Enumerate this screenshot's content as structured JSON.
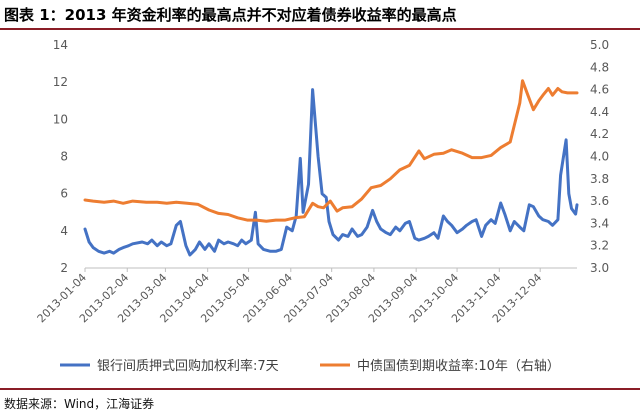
{
  "title": "图表 1：2013 年资金利率的最高点并不对应着债券收益率的最高点",
  "source": "数据来源：Wind，江海证券",
  "colors": {
    "series1": "#4472c4",
    "series2": "#ed7d31",
    "axis": "#bfbfbf",
    "text": "#595959",
    "rule": "#8a1d26"
  },
  "chart_data": {
    "type": "line",
    "x_ticks": [
      "2013-01-04",
      "2013-02-04",
      "2013-03-04",
      "2013-04-04",
      "2013-05-04",
      "2013-06-04",
      "2013-07-04",
      "2013-08-04",
      "2013-09-04",
      "2013-10-04",
      "2013-11-04",
      "2013-12-04"
    ],
    "y_left": {
      "min": 2,
      "max": 14,
      "ticks": [
        "2",
        "4",
        "6",
        "8",
        "10",
        "12",
        "14"
      ]
    },
    "y_right": {
      "min": 3.0,
      "max": 5.0,
      "ticks": [
        "3.0",
        "3.2",
        "3.4",
        "3.6",
        "3.8",
        "4.0",
        "4.2",
        "4.4",
        "4.6",
        "4.8",
        "5.0"
      ]
    },
    "grid": false,
    "legend_position": "bottom",
    "series": [
      {
        "name": "银行间质押式回购加权利率:7天",
        "axis": "left",
        "points": [
          [
            "2013-01-04",
            4.1
          ],
          [
            "2013-01-07",
            3.4
          ],
          [
            "2013-01-10",
            3.1
          ],
          [
            "2013-01-14",
            2.9
          ],
          [
            "2013-01-18",
            2.8
          ],
          [
            "2013-01-22",
            2.9
          ],
          [
            "2013-01-25",
            2.8
          ],
          [
            "2013-01-29",
            3.0
          ],
          [
            "2013-02-01",
            3.1
          ],
          [
            "2013-02-05",
            3.2
          ],
          [
            "2013-02-08",
            3.3
          ],
          [
            "2013-02-15",
            3.4
          ],
          [
            "2013-02-19",
            3.3
          ],
          [
            "2013-02-22",
            3.5
          ],
          [
            "2013-02-26",
            3.2
          ],
          [
            "2013-03-01",
            3.4
          ],
          [
            "2013-03-05",
            3.2
          ],
          [
            "2013-03-08",
            3.3
          ],
          [
            "2013-03-12",
            4.3
          ],
          [
            "2013-03-15",
            4.5
          ],
          [
            "2013-03-19",
            3.2
          ],
          [
            "2013-03-22",
            2.7
          ],
          [
            "2013-03-26",
            3.0
          ],
          [
            "2013-03-29",
            3.4
          ],
          [
            "2013-04-02",
            3.0
          ],
          [
            "2013-04-05",
            3.3
          ],
          [
            "2013-04-09",
            2.9
          ],
          [
            "2013-04-12",
            3.5
          ],
          [
            "2013-04-16",
            3.3
          ],
          [
            "2013-04-19",
            3.4
          ],
          [
            "2013-04-23",
            3.3
          ],
          [
            "2013-04-26",
            3.2
          ],
          [
            "2013-04-29",
            3.5
          ],
          [
            "2013-05-02",
            3.3
          ],
          [
            "2013-05-06",
            3.5
          ],
          [
            "2013-05-09",
            5.0
          ],
          [
            "2013-05-11",
            3.3
          ],
          [
            "2013-05-15",
            3.0
          ],
          [
            "2013-05-20",
            2.9
          ],
          [
            "2013-05-24",
            2.9
          ],
          [
            "2013-05-28",
            3.0
          ],
          [
            "2013-06-01",
            4.2
          ],
          [
            "2013-06-05",
            4.0
          ],
          [
            "2013-06-08",
            4.8
          ],
          [
            "2013-06-11",
            7.9
          ],
          [
            "2013-06-13",
            5.0
          ],
          [
            "2013-06-17",
            6.5
          ],
          [
            "2013-06-20",
            11.6
          ],
          [
            "2013-06-24",
            8.0
          ],
          [
            "2013-06-27",
            6.0
          ],
          [
            "2013-06-30",
            5.8
          ],
          [
            "2013-07-02",
            4.5
          ],
          [
            "2013-07-05",
            3.8
          ],
          [
            "2013-07-09",
            3.5
          ],
          [
            "2013-07-12",
            3.8
          ],
          [
            "2013-07-16",
            3.7
          ],
          [
            "2013-07-19",
            4.1
          ],
          [
            "2013-07-23",
            3.7
          ],
          [
            "2013-07-26",
            3.8
          ],
          [
            "2013-07-30",
            4.2
          ],
          [
            "2013-08-03",
            5.1
          ],
          [
            "2013-08-06",
            4.5
          ],
          [
            "2013-08-09",
            4.1
          ],
          [
            "2013-08-13",
            3.9
          ],
          [
            "2013-08-16",
            3.8
          ],
          [
            "2013-08-20",
            4.2
          ],
          [
            "2013-08-23",
            4.0
          ],
          [
            "2013-08-27",
            4.4
          ],
          [
            "2013-08-30",
            4.5
          ],
          [
            "2013-09-03",
            3.6
          ],
          [
            "2013-09-06",
            3.5
          ],
          [
            "2013-09-10",
            3.6
          ],
          [
            "2013-09-13",
            3.7
          ],
          [
            "2013-09-17",
            3.9
          ],
          [
            "2013-09-20",
            3.6
          ],
          [
            "2013-09-24",
            4.8
          ],
          [
            "2013-09-27",
            4.5
          ],
          [
            "2013-09-30",
            4.3
          ],
          [
            "2013-10-04",
            3.9
          ],
          [
            "2013-10-08",
            4.1
          ],
          [
            "2013-10-11",
            4.3
          ],
          [
            "2013-10-15",
            4.5
          ],
          [
            "2013-10-18",
            4.6
          ],
          [
            "2013-10-22",
            3.7
          ],
          [
            "2013-10-25",
            4.3
          ],
          [
            "2013-10-29",
            4.6
          ],
          [
            "2013-11-01",
            4.4
          ],
          [
            "2013-11-05",
            5.5
          ],
          [
            "2013-11-08",
            4.9
          ],
          [
            "2013-11-12",
            4.0
          ],
          [
            "2013-11-15",
            4.5
          ],
          [
            "2013-11-19",
            4.2
          ],
          [
            "2013-11-22",
            4.0
          ],
          [
            "2013-11-26",
            5.4
          ],
          [
            "2013-11-29",
            5.3
          ],
          [
            "2013-12-03",
            4.8
          ],
          [
            "2013-12-06",
            4.6
          ],
          [
            "2013-12-10",
            4.5
          ],
          [
            "2013-12-13",
            4.3
          ],
          [
            "2013-12-17",
            4.6
          ],
          [
            "2013-12-19",
            7.0
          ],
          [
            "2013-12-23",
            8.9
          ],
          [
            "2013-12-25",
            6.0
          ],
          [
            "2013-12-27",
            5.2
          ],
          [
            "2013-12-30",
            4.9
          ],
          [
            "2013-12-31",
            5.4
          ]
        ]
      },
      {
        "name": "中债国债到期收益率:10年（右轴）",
        "axis": "right",
        "points": [
          [
            "2013-01-04",
            3.61
          ],
          [
            "2013-01-10",
            3.6
          ],
          [
            "2013-01-18",
            3.59
          ],
          [
            "2013-01-25",
            3.6
          ],
          [
            "2013-02-01",
            3.58
          ],
          [
            "2013-02-08",
            3.6
          ],
          [
            "2013-02-18",
            3.59
          ],
          [
            "2013-02-26",
            3.59
          ],
          [
            "2013-03-05",
            3.58
          ],
          [
            "2013-03-12",
            3.59
          ],
          [
            "2013-03-20",
            3.58
          ],
          [
            "2013-03-28",
            3.57
          ],
          [
            "2013-04-05",
            3.52
          ],
          [
            "2013-04-12",
            3.49
          ],
          [
            "2013-04-19",
            3.48
          ],
          [
            "2013-04-26",
            3.45
          ],
          [
            "2013-05-03",
            3.43
          ],
          [
            "2013-05-10",
            3.43
          ],
          [
            "2013-05-17",
            3.42
          ],
          [
            "2013-05-24",
            3.43
          ],
          [
            "2013-05-31",
            3.43
          ],
          [
            "2013-06-07",
            3.45
          ],
          [
            "2013-06-14",
            3.46
          ],
          [
            "2013-06-20",
            3.58
          ],
          [
            "2013-06-24",
            3.55
          ],
          [
            "2013-06-28",
            3.54
          ],
          [
            "2013-07-03",
            3.6
          ],
          [
            "2013-07-08",
            3.51
          ],
          [
            "2013-07-12",
            3.54
          ],
          [
            "2013-07-19",
            3.55
          ],
          [
            "2013-07-26",
            3.62
          ],
          [
            "2013-08-02",
            3.72
          ],
          [
            "2013-08-09",
            3.74
          ],
          [
            "2013-08-16",
            3.8
          ],
          [
            "2013-08-23",
            3.88
          ],
          [
            "2013-08-30",
            3.92
          ],
          [
            "2013-09-06",
            4.05
          ],
          [
            "2013-09-10",
            3.98
          ],
          [
            "2013-09-17",
            4.02
          ],
          [
            "2013-09-24",
            4.03
          ],
          [
            "2013-09-30",
            4.06
          ],
          [
            "2013-10-08",
            4.03
          ],
          [
            "2013-10-15",
            3.99
          ],
          [
            "2013-10-22",
            3.99
          ],
          [
            "2013-10-29",
            4.01
          ],
          [
            "2013-11-05",
            4.08
          ],
          [
            "2013-11-12",
            4.13
          ],
          [
            "2013-11-15",
            4.28
          ],
          [
            "2013-11-19",
            4.48
          ],
          [
            "2013-11-21",
            4.68
          ],
          [
            "2013-11-25",
            4.55
          ],
          [
            "2013-11-29",
            4.42
          ],
          [
            "2013-12-03",
            4.5
          ],
          [
            "2013-12-06",
            4.55
          ],
          [
            "2013-12-10",
            4.61
          ],
          [
            "2013-12-13",
            4.55
          ],
          [
            "2013-12-17",
            4.61
          ],
          [
            "2013-12-20",
            4.58
          ],
          [
            "2013-12-24",
            4.57
          ],
          [
            "2013-12-31",
            4.57
          ]
        ]
      }
    ]
  }
}
